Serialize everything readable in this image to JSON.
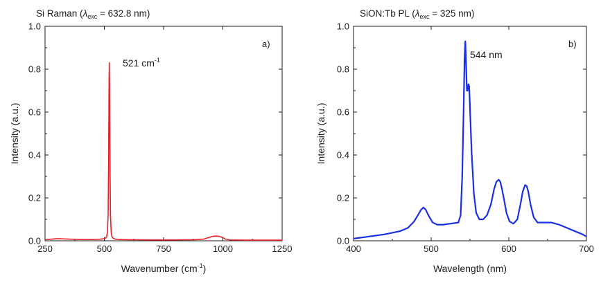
{
  "chart_data": [
    {
      "type": "line",
      "panel_label": "a)",
      "title_main": "Si Raman (",
      "title_lambda": "λ",
      "title_sub": "exc",
      "title_tail": " = 632.8 nm)",
      "xlabel_main": "Wavenumber (cm",
      "xlabel_sup": "-1",
      "xlabel_tail": ")",
      "ylabel": "Intensity (a.u.)",
      "xlim": [
        250,
        1250
      ],
      "ylim": [
        0,
        1.0
      ],
      "xticks": [
        250,
        500,
        750,
        1000,
        1250
      ],
      "xtick_labels": [
        "250",
        "500",
        "750",
        "1000",
        "1250"
      ],
      "yticks": [
        0,
        0.2,
        0.4,
        0.6,
        0.8,
        1.0
      ],
      "ytick_labels": [
        "0.0",
        "0.2",
        "0.4",
        "0.6",
        "0.8",
        "1.0"
      ],
      "annotation": {
        "main": "521 cm",
        "sup": "-1",
        "x": 521,
        "y": 0.83
      },
      "color": "#e8202a",
      "series": [
        {
          "x": [
            250,
            300,
            350,
            400,
            450,
            480,
            500,
            505,
            510,
            513,
            516,
            518,
            520,
            521,
            522,
            524,
            526,
            529,
            532,
            537,
            545,
            560,
            600,
            700,
            800,
            880,
            920,
            940,
            955,
            965,
            975,
            985,
            1000,
            1010,
            1030,
            1100,
            1200,
            1250
          ],
          "y": [
            0.005,
            0.01,
            0.008,
            0.006,
            0.006,
            0.007,
            0.01,
            0.012,
            0.02,
            0.04,
            0.12,
            0.35,
            0.75,
            0.83,
            0.75,
            0.35,
            0.12,
            0.04,
            0.02,
            0.012,
            0.008,
            0.006,
            0.005,
            0.004,
            0.004,
            0.005,
            0.008,
            0.015,
            0.02,
            0.022,
            0.022,
            0.02,
            0.015,
            0.008,
            0.004,
            0.003,
            0.003,
            0.003
          ]
        }
      ]
    },
    {
      "type": "line",
      "panel_label": "b)",
      "title_main": "SiON:Tb PL (",
      "title_lambda": "λ",
      "title_sub": "exc",
      "title_tail": " = 325 nm)",
      "xlabel_main": "Wavelength (nm)",
      "xlabel_sup": "",
      "xlabel_tail": "",
      "ylabel": "Intensity (a.u.)",
      "xlim": [
        400,
        700
      ],
      "ylim": [
        0,
        1.0
      ],
      "xticks": [
        400,
        500,
        600,
        700
      ],
      "xtick_labels": [
        "400",
        "500",
        "600",
        "700"
      ],
      "yticks": [
        0,
        0.2,
        0.4,
        0.6,
        0.8,
        1.0
      ],
      "ytick_labels": [
        "0.0",
        "0.2",
        "0.4",
        "0.6",
        "0.8",
        "1.0"
      ],
      "annotation": {
        "main": "544 nm",
        "sup": "",
        "x": 544,
        "y": 0.93
      },
      "color": "#1a2ee6",
      "series": [
        {
          "x": [
            400,
            420,
            440,
            460,
            470,
            478,
            483,
            487,
            490,
            493,
            497,
            502,
            508,
            515,
            525,
            535,
            538,
            540,
            542,
            543,
            544,
            545,
            546,
            547,
            548,
            549,
            550,
            552,
            555,
            558,
            562,
            567,
            572,
            577,
            581,
            584,
            587,
            589,
            591,
            594,
            597,
            601,
            606,
            611,
            615,
            618,
            621,
            623,
            625,
            628,
            632,
            637,
            645,
            655,
            665,
            675,
            685,
            695,
            700
          ],
          "y": [
            0.01,
            0.02,
            0.03,
            0.045,
            0.06,
            0.09,
            0.12,
            0.145,
            0.155,
            0.145,
            0.115,
            0.085,
            0.075,
            0.075,
            0.08,
            0.085,
            0.12,
            0.3,
            0.65,
            0.85,
            0.93,
            0.82,
            0.7,
            0.7,
            0.73,
            0.72,
            0.62,
            0.42,
            0.22,
            0.13,
            0.1,
            0.1,
            0.12,
            0.17,
            0.24,
            0.275,
            0.285,
            0.275,
            0.245,
            0.19,
            0.13,
            0.09,
            0.08,
            0.1,
            0.17,
            0.23,
            0.26,
            0.255,
            0.23,
            0.17,
            0.11,
            0.085,
            0.085,
            0.085,
            0.075,
            0.06,
            0.045,
            0.03,
            0.02
          ]
        }
      ]
    }
  ]
}
